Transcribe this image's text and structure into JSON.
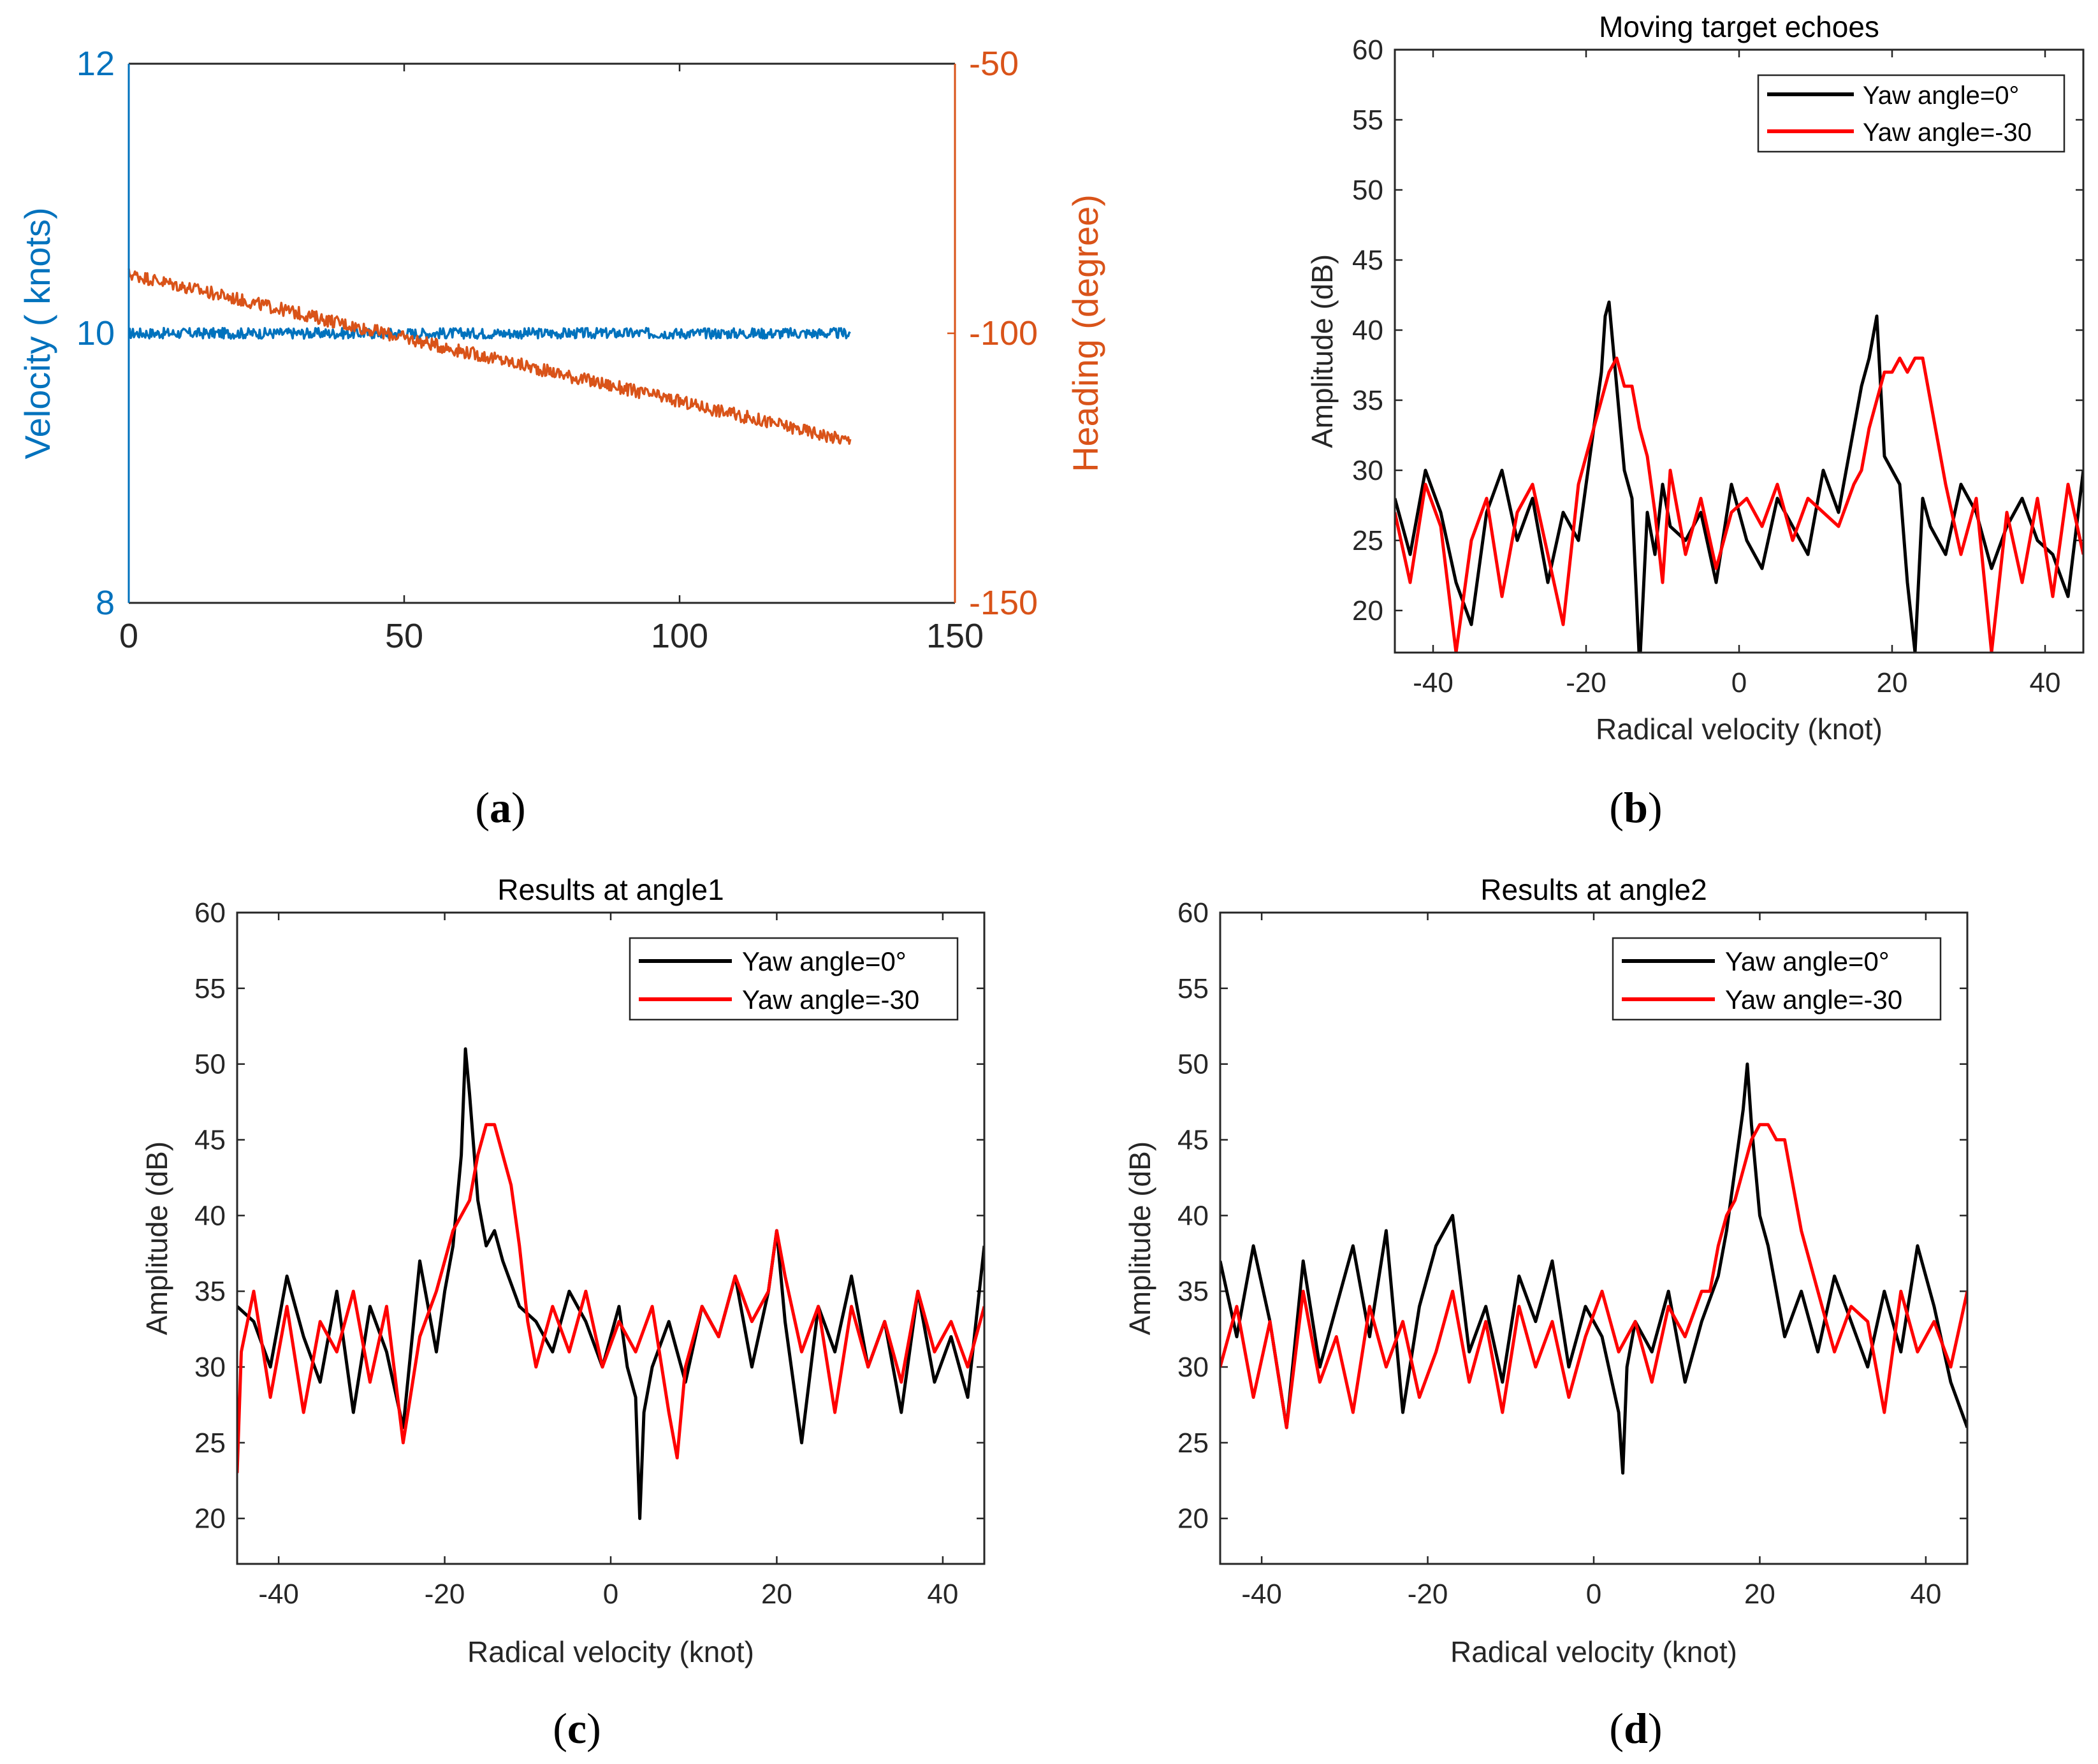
{
  "chart_data": [
    {
      "id": "a",
      "caption": {
        "open": "(",
        "letter": "a",
        "close": ")"
      },
      "type": "line",
      "title": "",
      "xlabel": "",
      "xlim": [
        0,
        150
      ],
      "xticks": [
        0,
        50,
        100,
        150
      ],
      "ylabel_left": "Velocity ( knots)",
      "ylim_left": [
        8,
        12
      ],
      "yticks_left": [
        8,
        10,
        12
      ],
      "ylabel_right": "Heading (degree)",
      "ylim_right": [
        -150,
        -50
      ],
      "yticks_right": [
        -150,
        -100,
        -50
      ],
      "colors": {
        "left": "#0072bd",
        "right": "#d95319"
      },
      "series": [
        {
          "name": "Velocity",
          "axis": "left",
          "color": "#0072bd",
          "x_range": [
            0,
            131
          ],
          "start": 10.0,
          "end": 10.0,
          "noise": 0.04
        },
        {
          "name": "Heading",
          "axis": "right",
          "color": "#d95319",
          "x_range": [
            0,
            131
          ],
          "start": -89,
          "end": -120,
          "noise": 1.2
        }
      ]
    },
    {
      "id": "b",
      "caption": {
        "open": "(",
        "letter": "b",
        "close": ")"
      },
      "type": "line",
      "title": "Moving target echoes",
      "xlabel": "Radical velocity (knot)",
      "ylabel": "Amplitude (dB)",
      "xlim": [
        -45,
        45
      ],
      "ylim": [
        17,
        60
      ],
      "xticks": [
        -40,
        -20,
        0,
        20,
        40
      ],
      "yticks": [
        20,
        25,
        30,
        35,
        40,
        45,
        50,
        55,
        60
      ],
      "legend": "top-right",
      "series": [
        {
          "name": "Yaw angle=0°",
          "color": "#000000",
          "x": [
            -45,
            -43,
            -41,
            -39,
            -37,
            -35,
            -33,
            -31,
            -29,
            -27,
            -25,
            -23,
            -21,
            -20,
            -19,
            -18,
            -17.5,
            -17,
            -16,
            -15,
            -14,
            -13,
            -12,
            -11,
            -10,
            -9,
            -7,
            -5,
            -3,
            -1,
            1,
            3,
            5,
            7,
            9,
            11,
            13,
            15,
            16,
            17,
            18,
            18.5,
            19,
            20,
            21,
            22,
            23,
            24,
            25,
            27,
            29,
            31,
            33,
            35,
            37,
            39,
            41,
            43,
            45
          ],
          "y": [
            28,
            24,
            30,
            27,
            22,
            19,
            27,
            30,
            25,
            28,
            22,
            27,
            25,
            29,
            33,
            37,
            41,
            42,
            36,
            30,
            28,
            16,
            27,
            24,
            29,
            26,
            25,
            27,
            22,
            29,
            25,
            23,
            28,
            26,
            24,
            30,
            27,
            33,
            36,
            38,
            41,
            36,
            31,
            30,
            29,
            22,
            17,
            28,
            26,
            24,
            29,
            27,
            23,
            26,
            28,
            25,
            24,
            21,
            30
          ]
        },
        {
          "name": "Yaw angle=-30",
          "color": "#ff0000",
          "x": [
            -45,
            -43,
            -41,
            -39,
            -37,
            -35,
            -33,
            -31,
            -29,
            -27,
            -25,
            -23,
            -21,
            -20,
            -19,
            -18,
            -17,
            -16,
            -15,
            -14,
            -13,
            -12,
            -11,
            -10,
            -9,
            -7,
            -5,
            -3,
            -1,
            1,
            3,
            5,
            7,
            9,
            11,
            13,
            15,
            16,
            17,
            18,
            19,
            20,
            21,
            22,
            23,
            24,
            25,
            27,
            29,
            31,
            33,
            35,
            37,
            39,
            41,
            43,
            45
          ],
          "y": [
            27,
            22,
            29,
            26,
            17,
            25,
            28,
            21,
            27,
            29,
            24,
            19,
            29,
            31,
            33,
            35,
            37,
            38,
            36,
            36,
            33,
            31,
            27,
            22,
            30,
            24,
            28,
            23,
            27,
            28,
            26,
            29,
            25,
            28,
            27,
            26,
            29,
            30,
            33,
            35,
            37,
            37,
            38,
            37,
            38,
            38,
            35,
            29,
            24,
            28,
            17,
            27,
            22,
            28,
            21,
            29,
            24
          ]
        }
      ]
    },
    {
      "id": "c",
      "caption": {
        "open": "(",
        "letter": "c",
        "close": ")"
      },
      "type": "line",
      "title": "Results at angle1",
      "xlabel": "Radical velocity (knot)",
      "ylabel": "Amplitude (dB)",
      "xlim": [
        -45,
        45
      ],
      "ylim": [
        17,
        60
      ],
      "xticks": [
        -40,
        -20,
        0,
        20,
        40
      ],
      "yticks": [
        20,
        25,
        30,
        35,
        40,
        45,
        50,
        55,
        60
      ],
      "legend": "top-right",
      "series": [
        {
          "name": "Yaw angle=0°",
          "color": "#000000",
          "x": [
            -45,
            -43,
            -41,
            -39,
            -37,
            -35,
            -33,
            -31,
            -29,
            -27,
            -25,
            -23,
            -21,
            -20,
            -19,
            -18,
            -17.5,
            -17,
            -16,
            -15,
            -14,
            -13,
            -11,
            -9,
            -7,
            -5,
            -3,
            -1,
            1,
            2,
            3,
            3.5,
            4,
            5,
            7,
            9,
            11,
            13,
            15,
            17,
            19,
            20,
            21,
            23,
            25,
            27,
            29,
            31,
            33,
            35,
            37,
            39,
            41,
            43,
            45
          ],
          "y": [
            34,
            33,
            30,
            36,
            32,
            29,
            35,
            27,
            34,
            31,
            26,
            37,
            31,
            35,
            38,
            44,
            51,
            48,
            41,
            38,
            39,
            37,
            34,
            33,
            31,
            35,
            33,
            30,
            34,
            30,
            28,
            20,
            27,
            30,
            33,
            29,
            34,
            32,
            36,
            30,
            35,
            39,
            33,
            25,
            34,
            31,
            36,
            30,
            33,
            27,
            35,
            29,
            32,
            28,
            38
          ]
        },
        {
          "name": "Yaw angle=-30",
          "color": "#ff0000",
          "x": [
            -45,
            -44.5,
            -43,
            -41,
            -39,
            -37,
            -35,
            -33,
            -31,
            -29,
            -27,
            -25,
            -23,
            -21,
            -20,
            -19,
            -18,
            -17,
            -16,
            -15,
            -14,
            -13,
            -12,
            -11,
            -10,
            -9,
            -7,
            -5,
            -3,
            -1,
            1,
            3,
            5,
            7,
            8,
            9,
            11,
            13,
            15,
            17,
            19,
            20,
            21,
            23,
            25,
            27,
            29,
            31,
            33,
            35,
            37,
            39,
            41,
            43,
            45
          ],
          "y": [
            23,
            31,
            35,
            28,
            34,
            27,
            33,
            31,
            35,
            29,
            34,
            25,
            32,
            35,
            37,
            39,
            40,
            41,
            44,
            46,
            46,
            44,
            42,
            38,
            33,
            30,
            34,
            31,
            35,
            30,
            33,
            31,
            34,
            27,
            24,
            30,
            34,
            32,
            36,
            33,
            35,
            39,
            36,
            31,
            34,
            27,
            34,
            30,
            33,
            29,
            35,
            31,
            33,
            30,
            34
          ]
        }
      ]
    },
    {
      "id": "d",
      "caption": {
        "open": "(",
        "letter": "d",
        "close": ")"
      },
      "type": "line",
      "title": "Results at angle2",
      "xlabel": "Radical velocity (knot)",
      "ylabel": "Amplitude (dB)",
      "xlim": [
        -45,
        45
      ],
      "ylim": [
        17,
        60
      ],
      "xticks": [
        -40,
        -20,
        0,
        20,
        40
      ],
      "yticks": [
        20,
        25,
        30,
        35,
        40,
        45,
        50,
        55,
        60
      ],
      "legend": "top-right",
      "series": [
        {
          "name": "Yaw angle=0°",
          "color": "#000000",
          "x": [
            -45,
            -43,
            -41,
            -39,
            -37,
            -35,
            -33,
            -31,
            -29,
            -27,
            -25,
            -23,
            -21,
            -19,
            -17,
            -15,
            -13,
            -11,
            -9,
            -7,
            -5,
            -3,
            -1,
            1,
            3,
            3.5,
            4,
            5,
            7,
            9,
            11,
            13,
            15,
            16,
            17,
            18,
            18.5,
            19,
            20,
            21,
            23,
            25,
            27,
            29,
            31,
            33,
            35,
            37,
            39,
            41,
            43,
            45
          ],
          "y": [
            37,
            32,
            38,
            33,
            26,
            37,
            30,
            34,
            38,
            32,
            39,
            27,
            34,
            38,
            40,
            31,
            34,
            29,
            36,
            33,
            37,
            30,
            34,
            32,
            27,
            23,
            30,
            33,
            31,
            35,
            29,
            33,
            36,
            39,
            43,
            47,
            50,
            46,
            40,
            38,
            32,
            35,
            31,
            36,
            33,
            30,
            35,
            31,
            38,
            34,
            29,
            26
          ]
        },
        {
          "name": "Yaw angle=-30",
          "color": "#ff0000",
          "x": [
            -45,
            -43,
            -41,
            -39,
            -37,
            -35,
            -33,
            -31,
            -29,
            -27,
            -25,
            -23,
            -21,
            -19,
            -17,
            -15,
            -13,
            -11,
            -9,
            -7,
            -5,
            -3,
            -1,
            1,
            3,
            5,
            7,
            9,
            11,
            13,
            14,
            15,
            16,
            17,
            18,
            19,
            20,
            21,
            22,
            23,
            24,
            25,
            26,
            27,
            29,
            31,
            33,
            35,
            37,
            39,
            41,
            43,
            45
          ],
          "y": [
            30,
            34,
            28,
            33,
            26,
            35,
            29,
            32,
            27,
            34,
            30,
            33,
            28,
            31,
            35,
            29,
            33,
            27,
            34,
            30,
            33,
            28,
            32,
            35,
            31,
            33,
            29,
            34,
            32,
            35,
            35,
            38,
            40,
            41,
            43,
            45,
            46,
            46,
            45,
            45,
            42,
            39,
            37,
            35,
            31,
            34,
            33,
            27,
            35,
            31,
            33,
            30,
            35
          ]
        }
      ]
    }
  ]
}
